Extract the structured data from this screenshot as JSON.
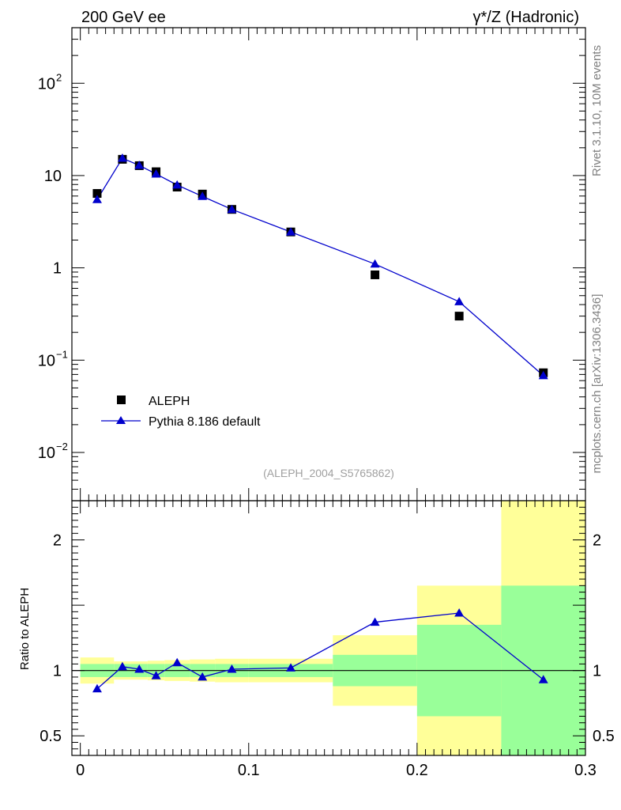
{
  "header": {
    "left": "200 GeV ee",
    "right": "γ*/Z (Hadronic)"
  },
  "side_labels": {
    "rivet": "Rivet 3.1.10,  10M events",
    "mcplots": "mcplots.cern.ch [arXiv:1306.3436]"
  },
  "watermark": "(ALEPH_2004_S5765862)",
  "colors": {
    "data": "#000000",
    "mc": "#0000cc",
    "band_inner": "#99ff99",
    "band_outer": "#ffff99"
  },
  "chart_data": [
    {
      "type": "scatter",
      "title": "",
      "xlabel": "",
      "ylabel": "",
      "xlim": [
        -0.005,
        0.3
      ],
      "ylim": [
        0.003,
        400
      ],
      "log_y": true,
      "y_ticks": [
        {
          "value": 0.01,
          "base": "10",
          "exp": "−2"
        },
        {
          "value": 0.1,
          "base": "10",
          "exp": "−1"
        },
        {
          "value": 1,
          "base": "1",
          "exp": ""
        },
        {
          "value": 10,
          "base": "10",
          "exp": ""
        },
        {
          "value": 100,
          "base": "10",
          "exp": "2"
        }
      ],
      "legend_position": "bottom-left",
      "series": [
        {
          "name": "ALEPH",
          "marker": "square",
          "x": [
            0.01,
            0.025,
            0.035,
            0.045,
            0.0575,
            0.0725,
            0.09,
            0.125,
            0.175,
            0.225,
            0.275
          ],
          "y": [
            6.4,
            15.0,
            12.8,
            11.0,
            7.5,
            6.3,
            4.3,
            2.45,
            0.84,
            0.3,
            0.073
          ]
        },
        {
          "name": "Pythia 8.186 default",
          "marker": "triangle",
          "x": [
            0.01,
            0.025,
            0.035,
            0.045,
            0.0575,
            0.0725,
            0.09,
            0.125,
            0.175,
            0.225,
            0.275
          ],
          "y": [
            5.5,
            15.4,
            12.9,
            10.4,
            7.9,
            5.95,
            4.3,
            2.45,
            1.1,
            0.43,
            0.068
          ]
        }
      ]
    },
    {
      "type": "line",
      "title": "",
      "xlabel": "",
      "ylabel": "Ratio to ALEPH",
      "xlim": [
        -0.005,
        0.3
      ],
      "ylim": [
        0.35,
        2.3
      ],
      "x_ticks": [
        {
          "value": 0,
          "label": "0"
        },
        {
          "value": 0.1,
          "label": "0.1"
        },
        {
          "value": 0.2,
          "label": "0.2"
        },
        {
          "value": 0.3,
          "label": "0.3"
        }
      ],
      "y_ticks": [
        {
          "value": 0.5,
          "label": "0.5"
        },
        {
          "value": 1,
          "label": "1"
        },
        {
          "value": 2,
          "label": "2"
        }
      ],
      "bands": [
        {
          "x0": 0.0,
          "x1": 0.02,
          "inner": [
            0.95,
            1.05
          ],
          "outer": [
            0.9,
            1.1
          ]
        },
        {
          "x0": 0.02,
          "x1": 0.03,
          "inner": [
            0.95,
            1.05
          ],
          "outer": [
            0.93,
            1.07
          ]
        },
        {
          "x0": 0.03,
          "x1": 0.04,
          "inner": [
            0.95,
            1.05
          ],
          "outer": [
            0.93,
            1.07
          ]
        },
        {
          "x0": 0.04,
          "x1": 0.05,
          "inner": [
            0.95,
            1.05
          ],
          "outer": [
            0.925,
            1.075
          ]
        },
        {
          "x0": 0.05,
          "x1": 0.065,
          "inner": [
            0.95,
            1.05
          ],
          "outer": [
            0.92,
            1.08
          ]
        },
        {
          "x0": 0.065,
          "x1": 0.08,
          "inner": [
            0.95,
            1.05
          ],
          "outer": [
            0.915,
            1.085
          ]
        },
        {
          "x0": 0.08,
          "x1": 0.1,
          "inner": [
            0.95,
            1.05
          ],
          "outer": [
            0.91,
            1.09
          ]
        },
        {
          "x0": 0.1,
          "x1": 0.15,
          "inner": [
            0.95,
            1.05
          ],
          "outer": [
            0.91,
            1.09
          ]
        },
        {
          "x0": 0.15,
          "x1": 0.2,
          "inner": [
            0.88,
            1.12
          ],
          "outer": [
            0.73,
            1.27
          ]
        },
        {
          "x0": 0.2,
          "x1": 0.25,
          "inner": [
            0.65,
            1.35
          ],
          "outer": [
            0.35,
            1.65
          ]
        },
        {
          "x0": 0.25,
          "x1": 0.3,
          "inner": [
            0.35,
            1.65
          ],
          "outer": [
            0.35,
            2.3
          ]
        }
      ],
      "series": [
        {
          "name": "Pythia 8.186 default",
          "x": [
            0.01,
            0.025,
            0.035,
            0.045,
            0.0575,
            0.0725,
            0.09,
            0.125,
            0.175,
            0.225,
            0.275
          ],
          "y": [
            0.86,
            1.03,
            1.01,
            0.96,
            1.06,
            0.95,
            1.01,
            1.02,
            1.37,
            1.44,
            0.93
          ]
        }
      ]
    }
  ]
}
